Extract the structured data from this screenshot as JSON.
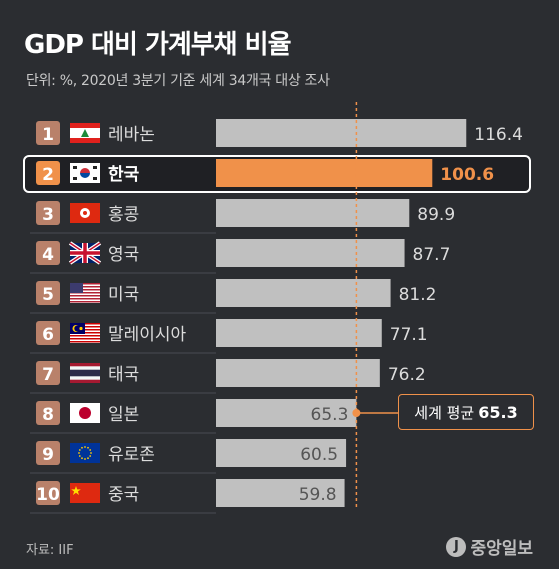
{
  "title": "GDP 대비 가계부채 비율",
  "subtitle": "단위: %, 2020년 3분기 기준 세계 34개국 대상 조사",
  "source": "자료: IIF",
  "logo": {
    "mark": "J",
    "text": "중앙일보"
  },
  "average": {
    "label": "세계 평균",
    "value": "65.3"
  },
  "colors": {
    "background": "#2b2d31",
    "bar": "#c0c0c0",
    "highlight": "#f0914a",
    "rank_box": "#b9816a",
    "average_line": "#f0914a"
  },
  "chart_data": {
    "type": "bar",
    "orientation": "horizontal",
    "title": "GDP 대비 가계부채 비율",
    "subtitle": "단위: %, 2020년 3분기 기준 세계 34개국 대상 조사",
    "average": 65.3,
    "xlim": [
      0,
      120
    ],
    "highlight": "한국",
    "categories": [
      {
        "rank": "1",
        "name": "레바논",
        "flag": "lebanon-flag",
        "value": 116.4
      },
      {
        "rank": "2",
        "name": "한국",
        "flag": "korea-flag",
        "value": 100.6
      },
      {
        "rank": "3",
        "name": "홍콩",
        "flag": "hongkong-flag",
        "value": 89.9
      },
      {
        "rank": "4",
        "name": "영국",
        "flag": "uk-flag",
        "value": 87.7
      },
      {
        "rank": "5",
        "name": "미국",
        "flag": "usa-flag",
        "value": 81.2
      },
      {
        "rank": "6",
        "name": "말레이시아",
        "flag": "malaysia-flag",
        "value": 77.1
      },
      {
        "rank": "7",
        "name": "태국",
        "flag": "thailand-flag",
        "value": 76.2
      },
      {
        "rank": "8",
        "name": "일본",
        "flag": "japan-flag",
        "value": 65.3
      },
      {
        "rank": "9",
        "name": "유로존",
        "flag": "eu-flag",
        "value": 60.5
      },
      {
        "rank": "10",
        "name": "중국",
        "flag": "china-flag",
        "value": 59.8
      }
    ]
  }
}
